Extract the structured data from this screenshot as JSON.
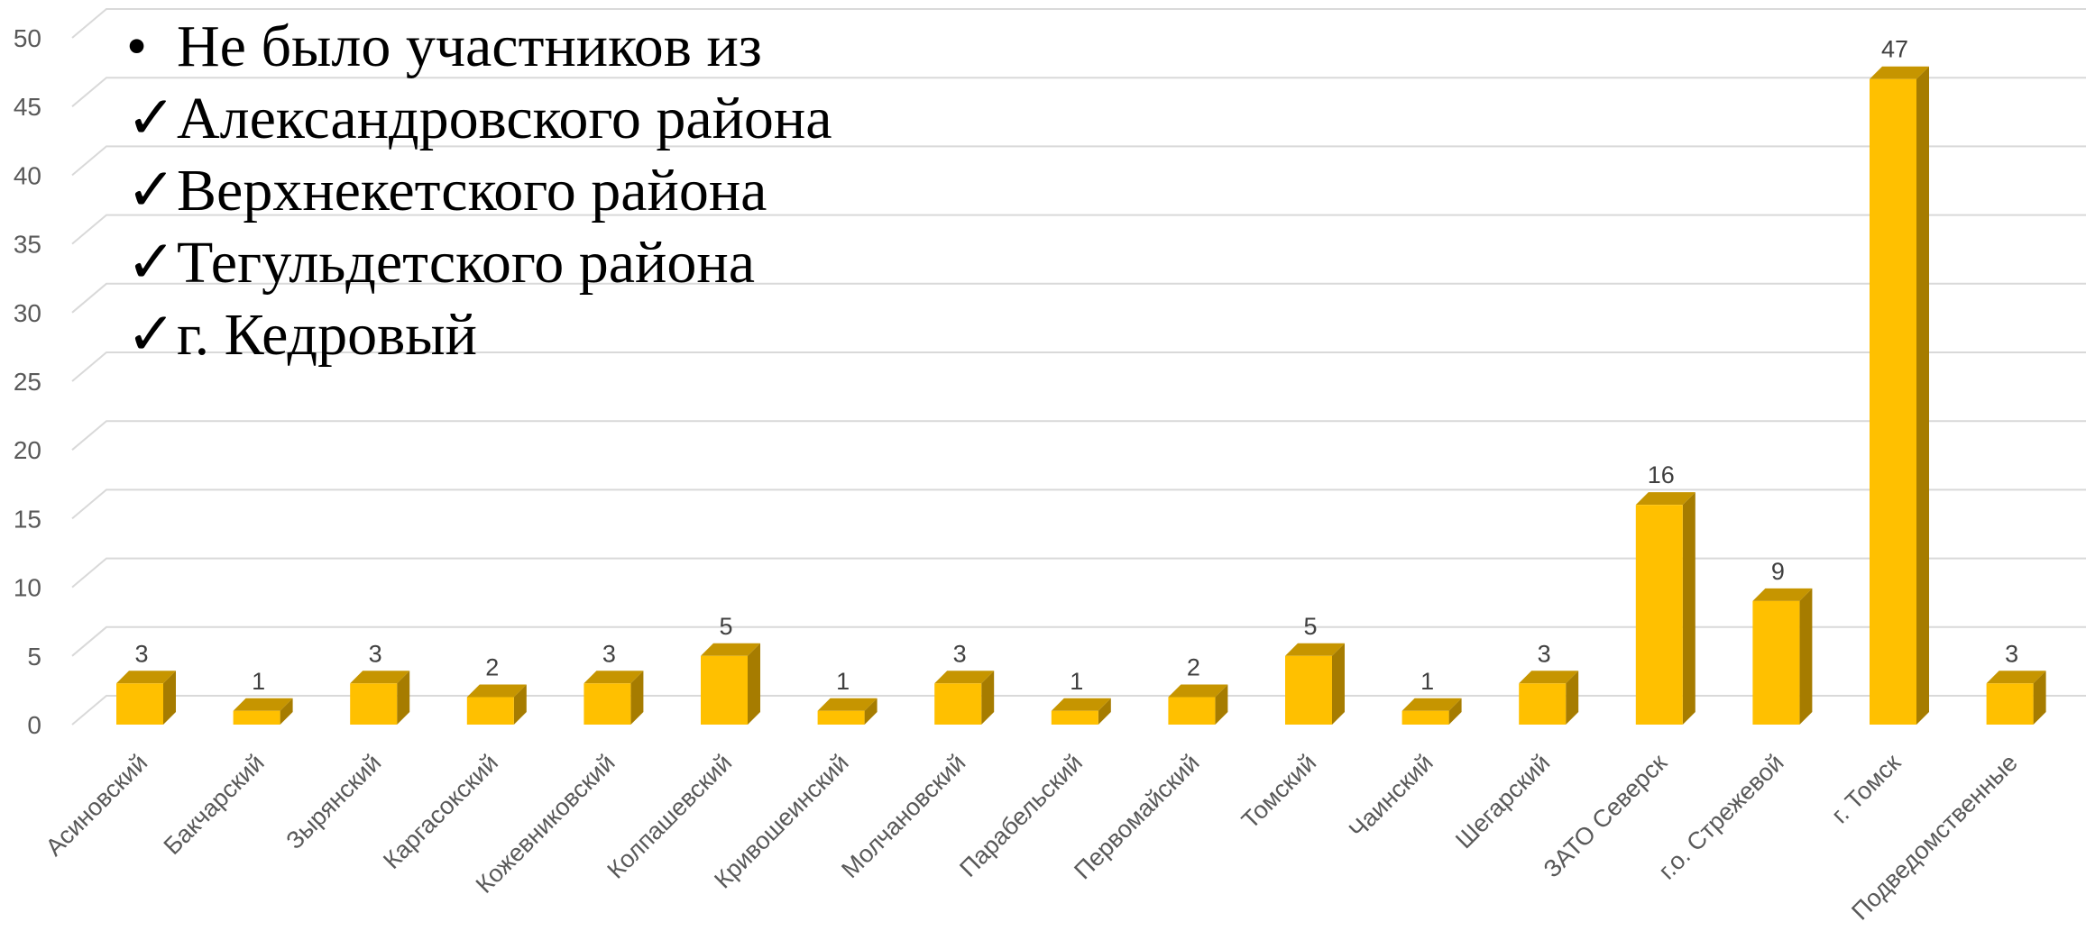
{
  "chart_data": {
    "type": "bar",
    "style": "3d-column",
    "categories": [
      "Асиновский",
      "Бакчарский",
      "Зырянский",
      "Каргасокский",
      "Кожевниковский",
      "Колпашевский",
      "Кривошеинский",
      "Молчановский",
      "Парабельский",
      "Первомайский",
      "Томский",
      "Чаинский",
      "Шегарский",
      "ЗАТО Северск",
      "г.о. Стрежевой",
      "г. Томск",
      "Подведомственные"
    ],
    "values": [
      3,
      1,
      3,
      2,
      3,
      5,
      1,
      3,
      1,
      2,
      5,
      1,
      3,
      16,
      9,
      47,
      3
    ],
    "ylim": [
      0,
      50
    ],
    "yticks": [
      0,
      5,
      10,
      15,
      20,
      25,
      30,
      35,
      40,
      45,
      50
    ],
    "grid": true,
    "data_labels": true,
    "colors": {
      "front": "#FFC000",
      "top": "#C69500",
      "side": "#A67C00",
      "grid": "#D9D9D9"
    }
  },
  "notes": {
    "heading": {
      "marker": "•",
      "text": "Не было участников из"
    },
    "items": [
      {
        "marker": "✓",
        "text": "Александровского района"
      },
      {
        "marker": "✓",
        "text": "Верхнекетского района"
      },
      {
        "marker": "✓",
        "text": "Тегульдетского района"
      },
      {
        "marker": "✓",
        "text": "г. Кедровый"
      }
    ]
  }
}
